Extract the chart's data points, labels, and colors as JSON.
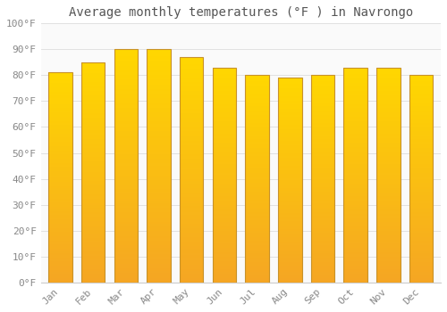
{
  "title": "Average monthly temperatures (°F ) in Navrongo",
  "months": [
    "Jan",
    "Feb",
    "Mar",
    "Apr",
    "May",
    "Jun",
    "Jul",
    "Aug",
    "Sep",
    "Oct",
    "Nov",
    "Dec"
  ],
  "values": [
    81,
    85,
    90,
    90,
    87,
    83,
    80,
    79,
    80,
    83,
    83,
    80
  ],
  "bar_color_top": "#FFD700",
  "bar_color_bottom": "#F5A623",
  "bar_edge_color": "#C8922A",
  "background_color": "#FFFFFF",
  "plot_bg_color": "#FAFAFA",
  "grid_color": "#DDDDDD",
  "ylim": [
    0,
    100
  ],
  "ytick_step": 10,
  "title_fontsize": 10,
  "tick_fontsize": 8,
  "tick_label_color": "#888888",
  "title_color": "#555555"
}
